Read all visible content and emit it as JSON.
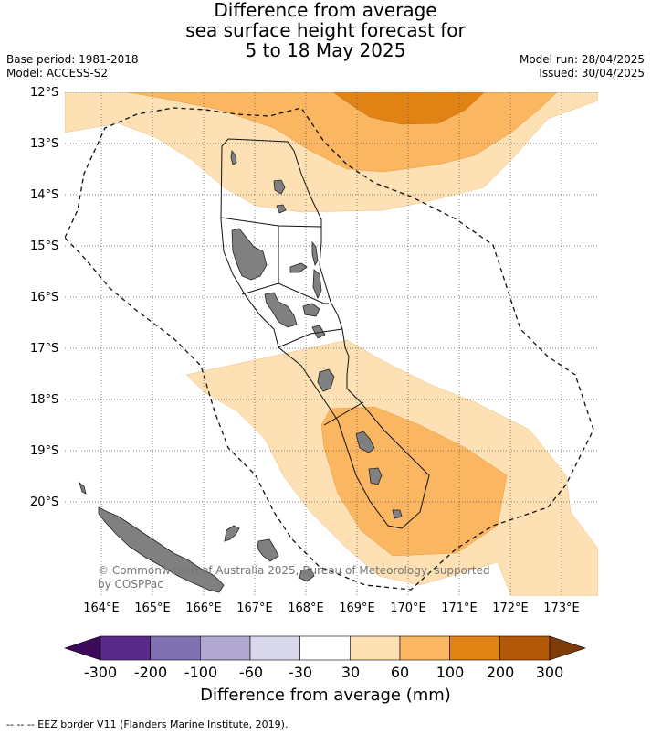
{
  "title": {
    "line1": "Difference from average",
    "line2": "sea surface height forecast for",
    "line3": "5 to 18 May 2025"
  },
  "meta_left": {
    "base_period": "Base period: 1981-2018",
    "model": "Model: ACCESS-S2"
  },
  "meta_right": {
    "model_run": "Model run: 28/04/2025",
    "issued": "Issued: 30/04/2025"
  },
  "map": {
    "lat_labels": [
      "12°S",
      "13°S",
      "14°S",
      "15°S",
      "16°S",
      "17°S",
      "18°S",
      "19°S",
      "20°S"
    ],
    "lon_labels": [
      "164°E",
      "165°E",
      "166°E",
      "167°E",
      "168°E",
      "169°E",
      "170°E",
      "171°E",
      "172°E",
      "173°E"
    ],
    "gridlines": true,
    "land_color": "#808080",
    "copyright_line1": "© Commonwealth of Australia 2025, Bureau of Meteorology, supported",
    "copyright_line2": "by COSPPac"
  },
  "colorbar": {
    "title": "Difference from average (mm)",
    "tick_labels": [
      "-300",
      "-200",
      "-100",
      "-60",
      "-30",
      "30",
      "60",
      "100",
      "200",
      "300"
    ],
    "colors": [
      "#3b0a5a",
      "#5a2a8a",
      "#8071b0",
      "#b0a8d0",
      "#d8d8ea",
      "#ffffff",
      "#fde0b3",
      "#fbb662",
      "#e08214",
      "#b35806",
      "#7f3b08"
    ]
  },
  "legend_note": "--  --  -- EEZ border V11 (Flanders Marine Institute, 2019)."
}
